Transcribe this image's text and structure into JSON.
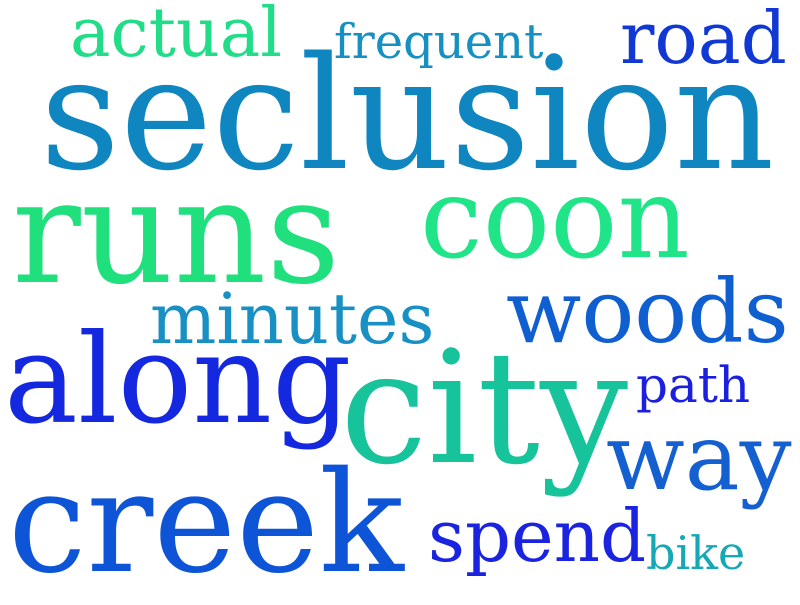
{
  "words": {
    "actual": {
      "text": "actual",
      "color": "#22dd88"
    },
    "frequent": {
      "text": "frequent",
      "color": "#1590c0"
    },
    "road": {
      "text": "road",
      "color": "#1238d4"
    },
    "seclusion": {
      "text": "seclusion",
      "color": "#0f86c0"
    },
    "runs": {
      "text": "runs",
      "color": "#1fe07c"
    },
    "coon": {
      "text": "coon",
      "color": "#20e588"
    },
    "minutes": {
      "text": "minutes",
      "color": "#1890c4"
    },
    "woods": {
      "text": "woods",
      "color": "#0f5fd0"
    },
    "along": {
      "text": "along",
      "color": "#1428e0"
    },
    "city": {
      "text": "city",
      "color": "#16c39a"
    },
    "path": {
      "text": "path",
      "color": "#1a1fe0"
    },
    "way": {
      "text": "way",
      "color": "#1460d0"
    },
    "creek": {
      "text": "creek",
      "color": "#0d55d6"
    },
    "spend": {
      "text": "spend",
      "color": "#1a24e0"
    },
    "bike": {
      "text": "bike",
      "color": "#16a8b4"
    }
  }
}
